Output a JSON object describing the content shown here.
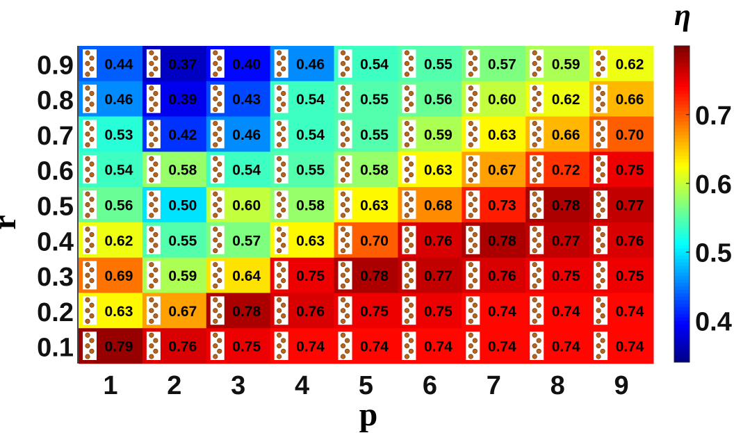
{
  "chart_data": {
    "type": "heatmap",
    "xlabel": "p",
    "ylabel": "r",
    "x": [
      1,
      2,
      3,
      4,
      5,
      6,
      7,
      8,
      9
    ],
    "y": [
      0.9,
      0.8,
      0.7,
      0.6,
      0.5,
      0.4,
      0.3,
      0.2,
      0.1
    ],
    "x_tick_labels": [
      "1",
      "2",
      "3",
      "4",
      "5",
      "6",
      "7",
      "8",
      "9"
    ],
    "y_tick_labels": [
      "0.9",
      "0.8",
      "0.7",
      "0.6",
      "0.5",
      "0.4",
      "0.3",
      "0.2",
      "0.1"
    ],
    "values": [
      [
        0.44,
        0.37,
        0.4,
        0.46,
        0.54,
        0.55,
        0.57,
        0.59,
        0.62
      ],
      [
        0.46,
        0.39,
        0.43,
        0.54,
        0.55,
        0.56,
        0.6,
        0.62,
        0.66
      ],
      [
        0.53,
        0.42,
        0.46,
        0.54,
        0.55,
        0.59,
        0.63,
        0.66,
        0.7
      ],
      [
        0.54,
        0.58,
        0.54,
        0.55,
        0.58,
        0.63,
        0.67,
        0.72,
        0.75
      ],
      [
        0.56,
        0.5,
        0.6,
        0.58,
        0.63,
        0.68,
        0.73,
        0.78,
        0.77
      ],
      [
        0.62,
        0.55,
        0.57,
        0.63,
        0.7,
        0.76,
        0.78,
        0.77,
        0.76
      ],
      [
        0.69,
        0.59,
        0.64,
        0.75,
        0.78,
        0.77,
        0.76,
        0.75,
        0.75
      ],
      [
        0.63,
        0.67,
        0.78,
        0.76,
        0.75,
        0.75,
        0.74,
        0.74,
        0.74
      ],
      [
        0.79,
        0.76,
        0.75,
        0.74,
        0.74,
        0.74,
        0.74,
        0.74,
        0.74
      ]
    ],
    "value_labels": [
      [
        "0.44",
        "0.37",
        "0.40",
        "0.46",
        "0.54",
        "0.55",
        "0.57",
        "0.59",
        "0.62"
      ],
      [
        "0.46",
        "0.39",
        "0.43",
        "0.54",
        "0.55",
        "0.56",
        "0.60",
        "0.62",
        "0.66"
      ],
      [
        "0.53",
        "0.42",
        "0.46",
        "0.54",
        "0.55",
        "0.59",
        "0.63",
        "0.66",
        "0.70"
      ],
      [
        "0.54",
        "0.58",
        "0.54",
        "0.55",
        "0.58",
        "0.63",
        "0.67",
        "0.72",
        "0.75"
      ],
      [
        "0.56",
        "0.50",
        "0.60",
        "0.58",
        "0.63",
        "0.68",
        "0.73",
        "0.78",
        "0.77"
      ],
      [
        "0.62",
        "0.55",
        "0.57",
        "0.63",
        "0.70",
        "0.76",
        "0.78",
        "0.77",
        "0.76"
      ],
      [
        "0.69",
        "0.59",
        "0.64",
        "0.75",
        "0.78",
        "0.77",
        "0.76",
        "0.75",
        "0.75"
      ],
      [
        "0.63",
        "0.67",
        "0.78",
        "0.76",
        "0.75",
        "0.75",
        "0.74",
        "0.74",
        "0.74"
      ],
      [
        "0.79",
        "0.76",
        "0.75",
        "0.74",
        "0.74",
        "0.74",
        "0.74",
        "0.74",
        "0.74"
      ]
    ],
    "colorbar": {
      "label": "η",
      "range": [
        0.34,
        0.8
      ],
      "ticks": [
        0.4,
        0.5,
        0.6,
        0.7
      ],
      "tick_labels": [
        "0.4",
        "0.5",
        "0.6",
        "0.7"
      ],
      "colormap": "jet"
    },
    "grid": false,
    "cell_inset_icon": "polymer-chain-icon"
  }
}
